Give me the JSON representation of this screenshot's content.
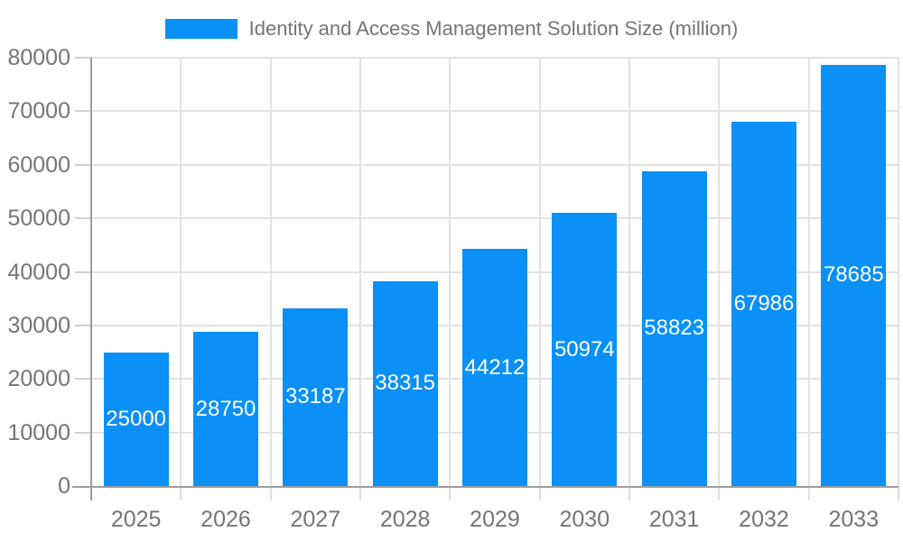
{
  "legend": {
    "label": "Identity and Access Management Solution Size (million)"
  },
  "chart_data": {
    "type": "bar",
    "title": "",
    "xlabel": "",
    "ylabel": "",
    "categories": [
      "2025",
      "2026",
      "2027",
      "2028",
      "2029",
      "2030",
      "2031",
      "2032",
      "2033"
    ],
    "series": [
      {
        "name": "Identity and Access Management Solution Size (million)",
        "values": [
          25000,
          28750,
          33187,
          38315,
          44212,
          50974,
          58823,
          67986,
          78685
        ],
        "color": "#0A90F6"
      }
    ],
    "yticks": [
      0,
      10000,
      20000,
      30000,
      40000,
      50000,
      60000,
      70000,
      80000
    ],
    "ylim": [
      0,
      80000
    ],
    "grid": true,
    "legend_position": "top",
    "value_labels": "inside-center"
  },
  "colors": {
    "bar": "#0A90F6",
    "grid": "#E2E2E2",
    "tick": "#CFCFCF",
    "x_tick": "#DFDFDF",
    "axis_line": "#9C9C9C",
    "axis_text": "#757575",
    "value_text": "#FFFFFF",
    "background": "#FFFFFF"
  }
}
